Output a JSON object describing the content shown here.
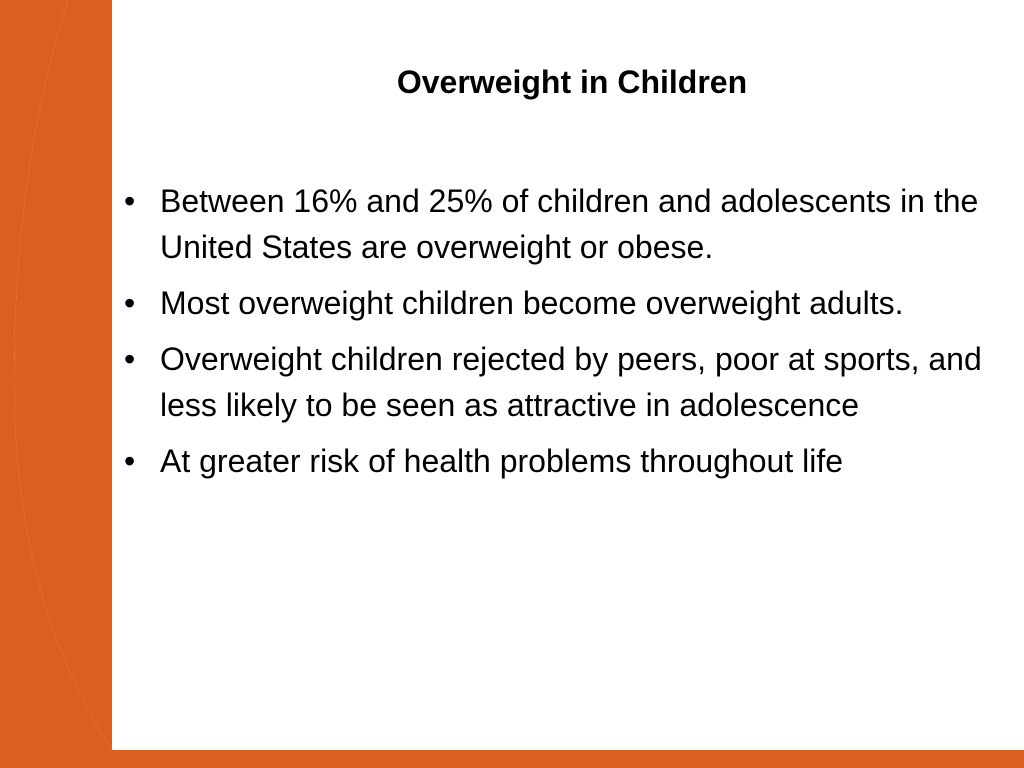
{
  "slide": {
    "title": "Overweight in Children",
    "accent_color": "#D9601F",
    "bullet_symbol": "•",
    "bullets": [
      {
        "text": "Between 16% and 25% of children and adolescents in the United States are overweight or obese."
      },
      {
        "text": "Most overweight children become overweight adults."
      },
      {
        "text": "Overweight children rejected by peers, poor at sports, and less likely to be seen as attractive in adolescence"
      },
      {
        "text": "At greater risk of health problems throughout life"
      }
    ]
  }
}
